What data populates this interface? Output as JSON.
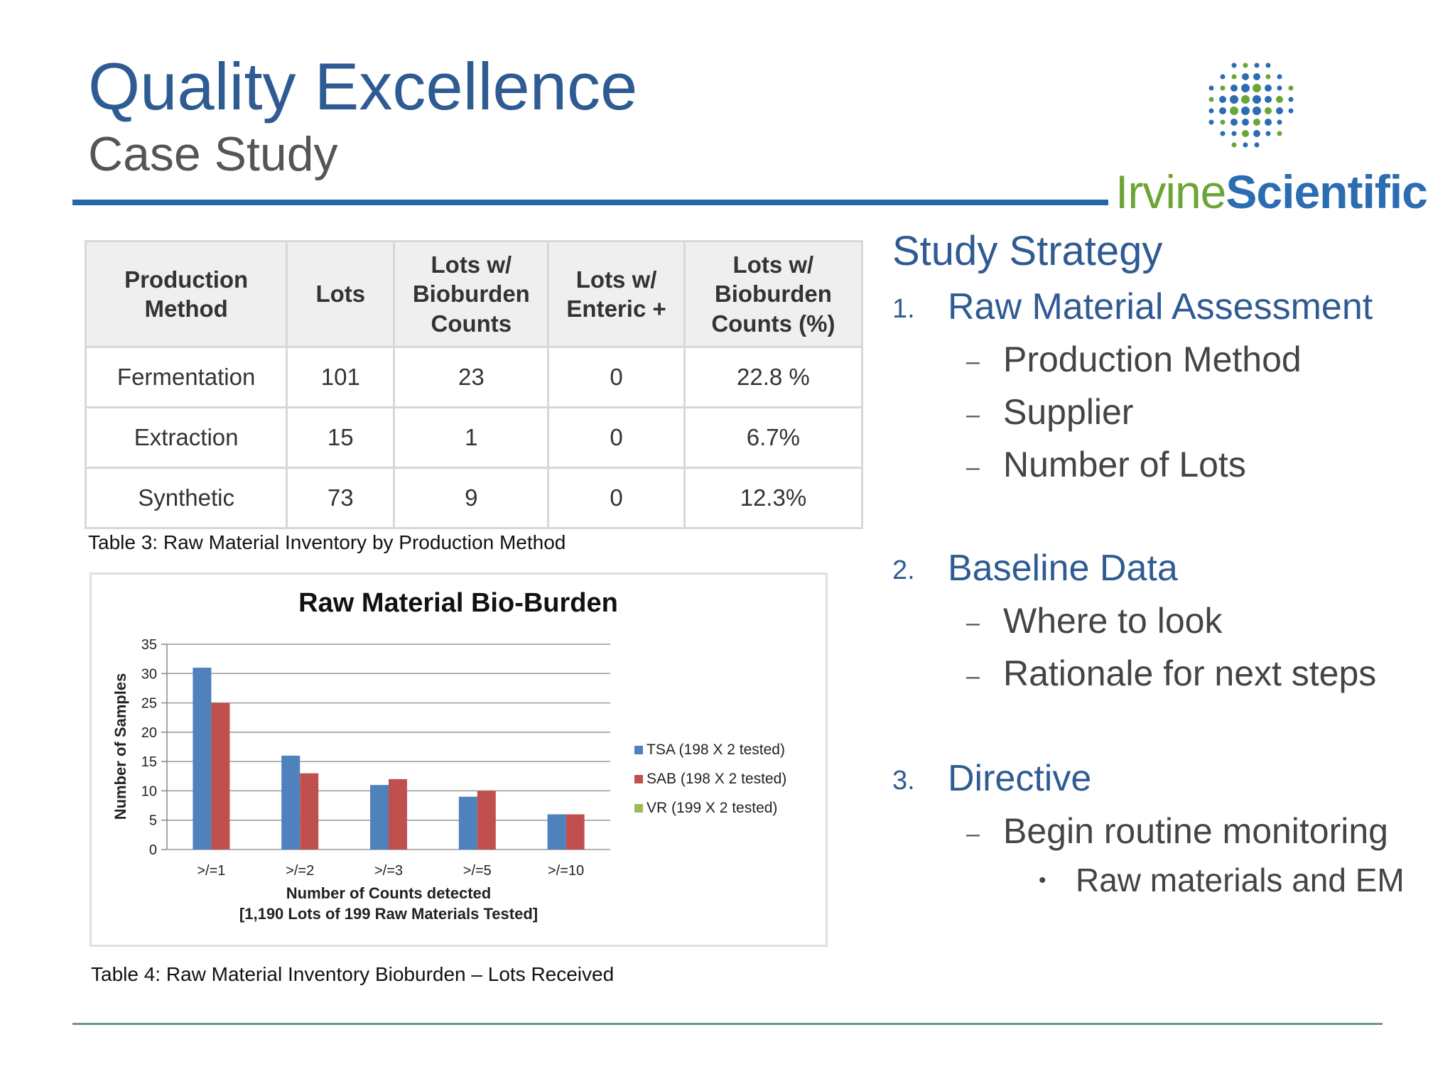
{
  "slide": {
    "title": "Quality Excellence",
    "subtitle": "Case Study"
  },
  "logo": {
    "text_part1": "Irvine",
    "text_part2": "Scientific",
    "colors": {
      "green": "#6aa536",
      "blue": "#2b6cb3"
    }
  },
  "table": {
    "headers": [
      "Production Method",
      "Lots",
      "Lots w/ Bioburden Counts",
      "Lots w/ Enteric +",
      "Lots w/ Bioburden Counts (%)"
    ],
    "rows": [
      [
        "Fermentation",
        "101",
        "23",
        "0",
        "22.8 %"
      ],
      [
        "Extraction",
        "15",
        "1",
        "0",
        "6.7%"
      ],
      [
        "Synthetic",
        "73",
        "9",
        "0",
        "12.3%"
      ]
    ],
    "caption": "Table 3:  Raw Material Inventory by Production Method"
  },
  "chart_data": {
    "type": "bar",
    "title": "Raw Material Bio-Burden",
    "xlabel": "Number of Counts detected",
    "xlabel_line2": "[1,190 Lots of 199 Raw Materials Tested]",
    "ylabel": "Number of Samples",
    "categories": [
      ">/=1",
      ">/=2",
      ">/=3",
      ">/=5",
      ">/=10"
    ],
    "series": [
      {
        "name": "TSA (198 X 2 tested)",
        "color": "#4f81bd",
        "values": [
          31,
          16,
          11,
          9,
          6
        ]
      },
      {
        "name": "SAB (198 X 2 tested)",
        "color": "#c0504d",
        "values": [
          25,
          13,
          12,
          10,
          6
        ]
      },
      {
        "name": "VR (199 X 2 tested)",
        "color": "#9bbb59",
        "values": [
          0,
          0,
          0,
          0,
          0
        ]
      }
    ],
    "ylim": [
      0,
      35
    ],
    "yticks": [
      0,
      5,
      10,
      15,
      20,
      25,
      30,
      35
    ],
    "grid": true,
    "legend": "right"
  },
  "chart_caption": "Table 4:  Raw Material Inventory Bioburden – Lots Received",
  "strategy": {
    "heading": "Study Strategy",
    "items": [
      {
        "number": "1.",
        "label": "Raw Material Assessment",
        "subitems": [
          "Production Method",
          "Supplier",
          "Number of Lots"
        ]
      },
      {
        "number": "2.",
        "label": "Baseline Data",
        "subitems": [
          "Where to look",
          "Rationale for next steps"
        ]
      },
      {
        "number": "3.",
        "label": "Directive",
        "subitems": [
          "Begin routine monitoring"
        ],
        "subsubitems": [
          "Raw materials and EM"
        ]
      }
    ],
    "dash_symbol": "–",
    "bullet_symbol": "•"
  }
}
